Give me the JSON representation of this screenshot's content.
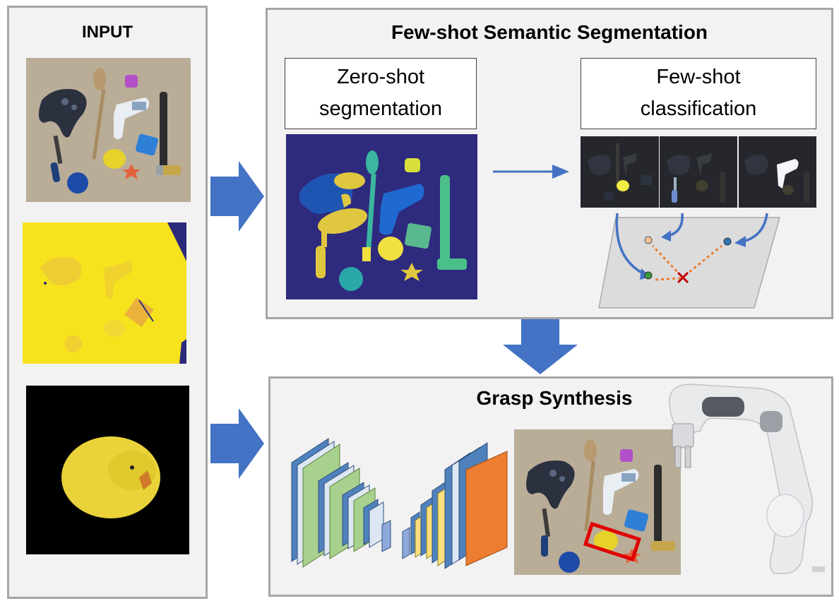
{
  "input_panel": {
    "title": "INPUT"
  },
  "segmentation_panel": {
    "title": "Few-shot Semantic Segmentation",
    "zero_shot_label_line1": "Zero-shot",
    "zero_shot_label_line2": "segmentation",
    "few_shot_label_line1": "Few-shot",
    "few_shot_label_line2": "classification"
  },
  "grasp_panel": {
    "title": "Grasp Synthesis"
  },
  "colors": {
    "panel_bg": "#f2f2f2",
    "panel_border": "#a6a6a6",
    "arrow_blue": "#4472c4",
    "distance_orange": "#ed7d31",
    "grasp_box_red": "#e00000",
    "segmentation_bg": "#2e2a7e"
  }
}
